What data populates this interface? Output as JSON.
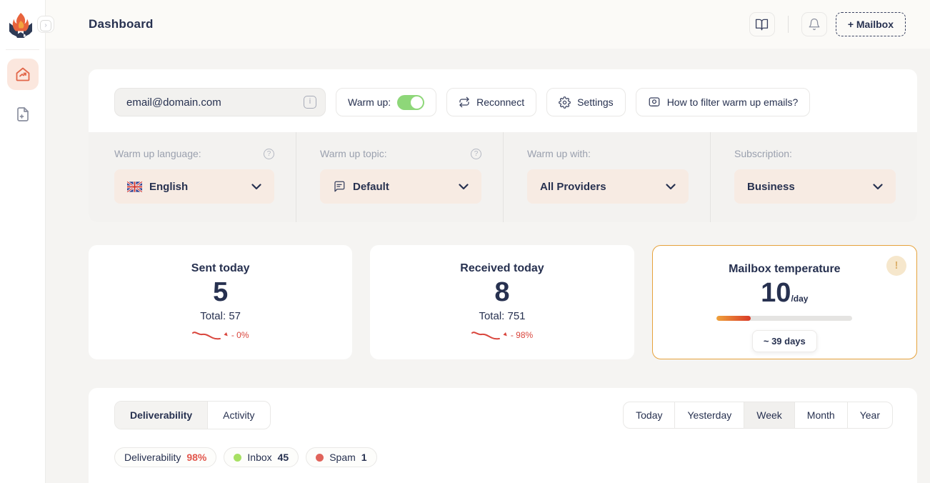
{
  "header": {
    "title": "Dashboard",
    "mailbox_button": "+ Mailbox"
  },
  "toolbar": {
    "email_value": "email@domain.com",
    "warmup_label": "Warm up:",
    "warmup_state": "on",
    "reconnect_label": "Reconnect",
    "settings_label": "Settings",
    "howto_label": "How to filter warm up emails?"
  },
  "filters": [
    {
      "label": "Warm up language:",
      "value": "English",
      "icon": "uk-flag",
      "has_help": true
    },
    {
      "label": "Warm up topic:",
      "value": "Default",
      "icon": "chat-bubble",
      "has_help": true
    },
    {
      "label": "Warm up with:",
      "value": "All Providers",
      "icon": "",
      "has_help": false
    },
    {
      "label": "Subscription:",
      "value": "Business",
      "icon": "",
      "has_help": false
    }
  ],
  "stats": {
    "sent": {
      "title": "Sent today",
      "value": "5",
      "total": "Total: 57",
      "change": "- 0%"
    },
    "received": {
      "title": "Received today",
      "value": "8",
      "total": "Total: 751",
      "change": "- 98%"
    },
    "temperature": {
      "title": "Mailbox temperature",
      "value": "10",
      "unit": "/day",
      "eta": "~ 39 days",
      "progress_pct": 25
    }
  },
  "tabs": [
    {
      "label": "Deliverability",
      "active": true
    },
    {
      "label": "Activity",
      "active": false
    }
  ],
  "time_filters": {
    "items": [
      "Today",
      "Yesterday",
      "Week",
      "Month",
      "Year"
    ],
    "selected": "Week"
  },
  "badges": [
    {
      "label": "Deliverability",
      "value": "98%"
    },
    {
      "label": "Inbox",
      "value": "45"
    },
    {
      "label": "Spam",
      "value": "1"
    }
  ],
  "icons": {
    "alert": "!",
    "collapse": "›",
    "info": "i",
    "help": "?",
    "down_arrow": "▸"
  },
  "colors": {
    "accent_orange": "#e2674a",
    "toggle_green": "#8ed779",
    "trend_red": "#d9453c",
    "temperature_border": "#e6a23c",
    "inbox_dot": "#a7e063",
    "spam_dot": "#e0635a",
    "text_navy": "#273150"
  }
}
